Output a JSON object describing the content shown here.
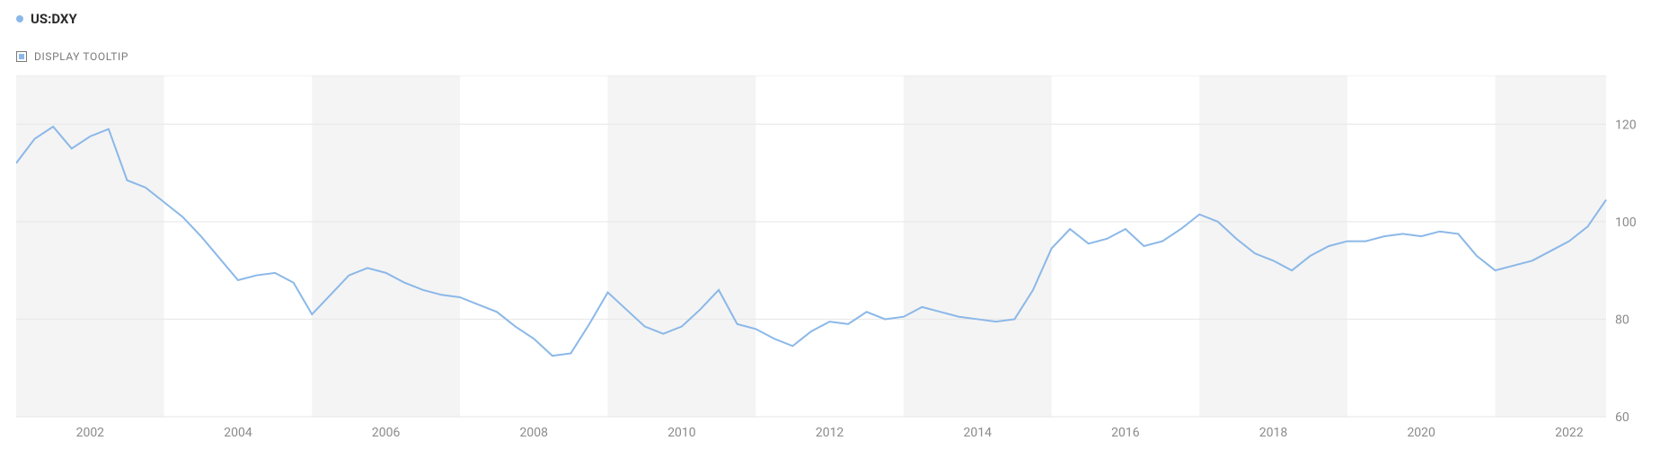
{
  "legend": {
    "bullet_color": "#8bb8e8",
    "label": "US:DXY",
    "label_color": "#2b2b2b",
    "label_fontsize": 15,
    "label_fontweight": 700
  },
  "tooltip_toggle": {
    "label": "DISPLAY TOOLTIP",
    "label_color": "#7a7a7a",
    "label_fontsize": 12,
    "checkbox_border_color": "#7a7a7a",
    "checkbox_fill_color": "#8bb8e8",
    "checked": true
  },
  "chart": {
    "type": "line",
    "background_color": "#ffffff",
    "alt_band_color": "#f4f4f4",
    "grid_color": "#e6e6e6",
    "axis_line_color": "#e6e6e6",
    "series_color": "#8bb8e8",
    "series_width": 2,
    "tick_font_color": "#8a8a8a",
    "tick_fontsize": 14,
    "y": {
      "min": 60,
      "max": 130,
      "ticks": [
        60,
        80,
        100,
        120
      ]
    },
    "x": {
      "start_year": 2001,
      "end_year": 2022.5,
      "tick_years": [
        2002,
        2004,
        2006,
        2008,
        2010,
        2012,
        2014,
        2016,
        2018,
        2020,
        2022
      ]
    },
    "series": [
      {
        "name": "US:DXY",
        "color": "#8bb8e8",
        "points": [
          [
            2001.0,
            112.0
          ],
          [
            2001.25,
            117.0
          ],
          [
            2001.5,
            119.5
          ],
          [
            2001.75,
            115.0
          ],
          [
            2002.0,
            117.5
          ],
          [
            2002.25,
            119.0
          ],
          [
            2002.5,
            108.5
          ],
          [
            2002.75,
            107.0
          ],
          [
            2003.0,
            104.0
          ],
          [
            2003.25,
            101.0
          ],
          [
            2003.5,
            97.0
          ],
          [
            2003.75,
            92.5
          ],
          [
            2004.0,
            88.0
          ],
          [
            2004.25,
            89.0
          ],
          [
            2004.5,
            89.5
          ],
          [
            2004.75,
            87.5
          ],
          [
            2005.0,
            81.0
          ],
          [
            2005.25,
            85.0
          ],
          [
            2005.5,
            89.0
          ],
          [
            2005.75,
            90.5
          ],
          [
            2006.0,
            89.5
          ],
          [
            2006.25,
            87.5
          ],
          [
            2006.5,
            86.0
          ],
          [
            2006.75,
            85.0
          ],
          [
            2007.0,
            84.5
          ],
          [
            2007.25,
            83.0
          ],
          [
            2007.5,
            81.5
          ],
          [
            2007.75,
            78.5
          ],
          [
            2008.0,
            76.0
          ],
          [
            2008.25,
            72.5
          ],
          [
            2008.5,
            73.0
          ],
          [
            2008.75,
            79.0
          ],
          [
            2009.0,
            85.5
          ],
          [
            2009.25,
            82.0
          ],
          [
            2009.5,
            78.5
          ],
          [
            2009.75,
            77.0
          ],
          [
            2010.0,
            78.5
          ],
          [
            2010.25,
            82.0
          ],
          [
            2010.5,
            86.0
          ],
          [
            2010.75,
            79.0
          ],
          [
            2011.0,
            78.0
          ],
          [
            2011.25,
            76.0
          ],
          [
            2011.5,
            74.5
          ],
          [
            2011.75,
            77.5
          ],
          [
            2012.0,
            79.5
          ],
          [
            2012.25,
            79.0
          ],
          [
            2012.5,
            81.5
          ],
          [
            2012.75,
            80.0
          ],
          [
            2013.0,
            80.5
          ],
          [
            2013.25,
            82.5
          ],
          [
            2013.5,
            81.5
          ],
          [
            2013.75,
            80.5
          ],
          [
            2014.0,
            80.0
          ],
          [
            2014.25,
            79.5
          ],
          [
            2014.5,
            80.0
          ],
          [
            2014.75,
            86.0
          ],
          [
            2015.0,
            94.5
          ],
          [
            2015.25,
            98.5
          ],
          [
            2015.5,
            95.5
          ],
          [
            2015.75,
            96.5
          ],
          [
            2016.0,
            98.5
          ],
          [
            2016.25,
            95.0
          ],
          [
            2016.5,
            96.0
          ],
          [
            2016.75,
            98.5
          ],
          [
            2017.0,
            101.5
          ],
          [
            2017.25,
            100.0
          ],
          [
            2017.5,
            96.5
          ],
          [
            2017.75,
            93.5
          ],
          [
            2018.0,
            92.0
          ],
          [
            2018.25,
            90.0
          ],
          [
            2018.5,
            93.0
          ],
          [
            2018.75,
            95.0
          ],
          [
            2019.0,
            96.0
          ],
          [
            2019.25,
            96.0
          ],
          [
            2019.5,
            97.0
          ],
          [
            2019.75,
            97.5
          ],
          [
            2020.0,
            97.0
          ],
          [
            2020.25,
            98.0
          ],
          [
            2020.5,
            97.5
          ],
          [
            2020.75,
            93.0
          ],
          [
            2021.0,
            90.0
          ],
          [
            2021.25,
            91.0
          ],
          [
            2021.5,
            92.0
          ],
          [
            2021.75,
            94.0
          ],
          [
            2022.0,
            96.0
          ],
          [
            2022.25,
            99.0
          ],
          [
            2022.5,
            104.5
          ]
        ]
      }
    ]
  }
}
